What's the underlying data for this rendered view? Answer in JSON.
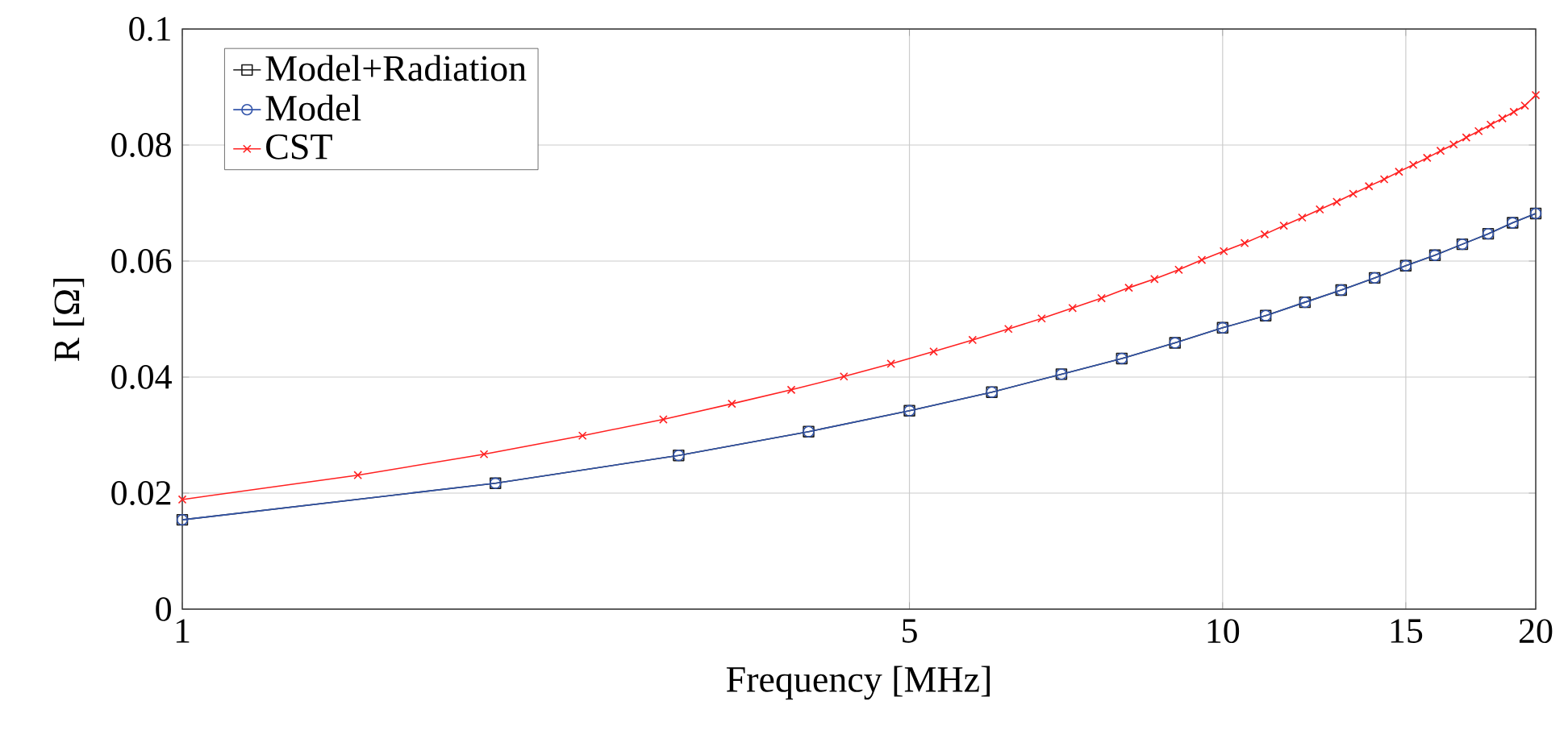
{
  "chart_data": {
    "type": "line",
    "xlabel": "Frequency [MHz]",
    "ylabel": "R [Ω]",
    "log": "x",
    "grid": true,
    "legend": "top left",
    "xlim": [
      1,
      20
    ],
    "xticks": [
      1,
      5,
      10,
      15,
      20
    ],
    "ylim": [
      0,
      0.1
    ],
    "yticks": [
      0,
      0.02,
      0.04,
      0.06,
      0.08,
      0.1
    ],
    "series": [
      {
        "name": "Model+Radiation",
        "color": "#1a1a1a",
        "marker": "square",
        "x": [
          1,
          2,
          3,
          4,
          5,
          6,
          7,
          8,
          9,
          10,
          11,
          12,
          13,
          14,
          15,
          16,
          17,
          18,
          19,
          20
        ],
        "values": [
          0.0154,
          0.0217,
          0.0265,
          0.0306,
          0.0342,
          0.0374,
          0.0405,
          0.0432,
          0.0459,
          0.0485,
          0.0506,
          0.0529,
          0.055,
          0.0571,
          0.0592,
          0.061,
          0.0629,
          0.0647,
          0.0666,
          0.0682
        ]
      },
      {
        "name": "Model",
        "color": "#3355aa",
        "marker": "circle",
        "x": [
          1,
          2,
          3,
          4,
          5,
          6,
          7,
          8,
          9,
          10,
          11,
          12,
          13,
          14,
          15,
          16,
          17,
          18,
          19,
          20
        ],
        "values": [
          0.0154,
          0.0217,
          0.0265,
          0.0306,
          0.0342,
          0.0374,
          0.0405,
          0.0432,
          0.0459,
          0.0485,
          0.0506,
          0.0529,
          0.055,
          0.0571,
          0.0592,
          0.061,
          0.0629,
          0.0647,
          0.0666,
          0.0682
        ]
      },
      {
        "name": "CST",
        "color": "#ff2020",
        "marker": "cross",
        "x": [
          1,
          1.475,
          1.95,
          2.425,
          2.9,
          3.375,
          3.85,
          4.325,
          4.8,
          5.275,
          5.75,
          6.225,
          6.7,
          7.175,
          7.65,
          8.125,
          8.6,
          9.075,
          9.55,
          10.025,
          10.5,
          10.975,
          11.45,
          11.925,
          12.4,
          12.875,
          13.35,
          13.825,
          14.3,
          14.775,
          15.25,
          15.725,
          16.2,
          16.675,
          17.15,
          17.625,
          18.1,
          18.575,
          19.05,
          19.525,
          20
        ],
        "values": [
          0.0189,
          0.0231,
          0.0267,
          0.0299,
          0.0327,
          0.0354,
          0.0378,
          0.0401,
          0.0423,
          0.0444,
          0.0464,
          0.0483,
          0.0501,
          0.0519,
          0.0536,
          0.0554,
          0.0569,
          0.0585,
          0.0602,
          0.0617,
          0.0631,
          0.0646,
          0.0661,
          0.0675,
          0.0689,
          0.0702,
          0.0716,
          0.0729,
          0.0741,
          0.0754,
          0.0766,
          0.0778,
          0.079,
          0.0801,
          0.0813,
          0.0824,
          0.0835,
          0.0846,
          0.0857,
          0.0868,
          0.0886
        ]
      }
    ]
  }
}
